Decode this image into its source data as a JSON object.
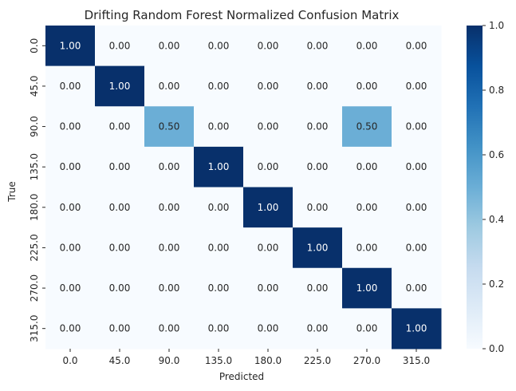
{
  "chart_data": {
    "type": "heatmap",
    "title": "Drifting Random Forest Normalized Confusion Matrix",
    "xlabel": "Predicted",
    "ylabel": "True",
    "x_categories": [
      "0.0",
      "45.0",
      "90.0",
      "135.0",
      "180.0",
      "225.0",
      "270.0",
      "315.0"
    ],
    "y_categories": [
      "0.0",
      "45.0",
      "90.0",
      "135.0",
      "180.0",
      "225.0",
      "270.0",
      "315.0"
    ],
    "values": [
      [
        1.0,
        0.0,
        0.0,
        0.0,
        0.0,
        0.0,
        0.0,
        0.0
      ],
      [
        0.0,
        1.0,
        0.0,
        0.0,
        0.0,
        0.0,
        0.0,
        0.0
      ],
      [
        0.0,
        0.0,
        0.5,
        0.0,
        0.0,
        0.0,
        0.5,
        0.0
      ],
      [
        0.0,
        0.0,
        0.0,
        1.0,
        0.0,
        0.0,
        0.0,
        0.0
      ],
      [
        0.0,
        0.0,
        0.0,
        0.0,
        1.0,
        0.0,
        0.0,
        0.0
      ],
      [
        0.0,
        0.0,
        0.0,
        0.0,
        0.0,
        1.0,
        0.0,
        0.0
      ],
      [
        0.0,
        0.0,
        0.0,
        0.0,
        0.0,
        0.0,
        1.0,
        0.0
      ],
      [
        0.0,
        0.0,
        0.0,
        0.0,
        0.0,
        0.0,
        0.0,
        1.0
      ]
    ],
    "value_format": "0.00",
    "colormap": "Blues",
    "colorbar": {
      "range": [
        0.0,
        1.0
      ],
      "ticks": [
        "0.0",
        "0.2",
        "0.4",
        "0.6",
        "0.8",
        "1.0"
      ]
    },
    "colors": {
      "low": "#f7fbff",
      "mid": "#5ba3d0",
      "high": "#08306b"
    }
  }
}
